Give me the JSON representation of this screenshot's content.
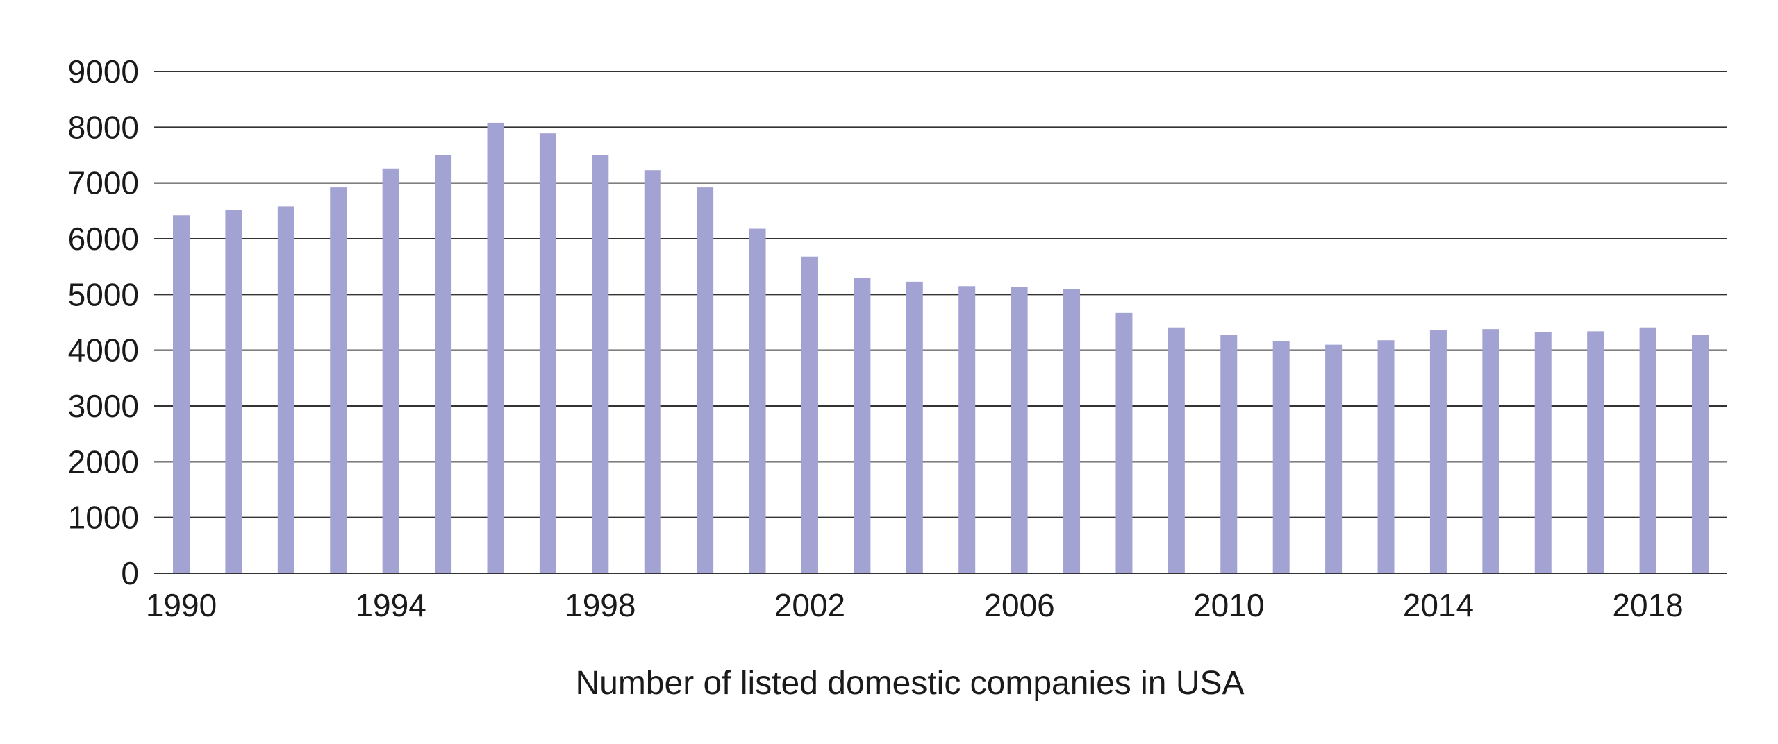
{
  "chart_data": {
    "type": "bar",
    "title": "",
    "xlabel": "Number of listed domestic companies in USA",
    "ylabel": "",
    "categories": [
      "1990",
      "1991",
      "1992",
      "1993",
      "1994",
      "1995",
      "1996",
      "1997",
      "1998",
      "1999",
      "2000",
      "2001",
      "2002",
      "2003",
      "2004",
      "2005",
      "2006",
      "2007",
      "2008",
      "2009",
      "2010",
      "2011",
      "2012",
      "2013",
      "2014",
      "2015",
      "2016",
      "2017",
      "2018",
      "2019"
    ],
    "x_tick_labels": [
      "1990",
      "1994",
      "1998",
      "2002",
      "2006",
      "2010",
      "2014",
      "2018"
    ],
    "y_ticks": [
      0,
      1000,
      2000,
      3000,
      4000,
      5000,
      6000,
      7000,
      8000,
      9000
    ],
    "values": [
      6420,
      6520,
      6580,
      6920,
      7260,
      7500,
      8080,
      7890,
      7500,
      7230,
      6920,
      6180,
      5680,
      5300,
      5230,
      5150,
      5130,
      5100,
      4670,
      4410,
      4280,
      4170,
      4100,
      4180,
      4360,
      4380,
      4330,
      4340,
      4410,
      4280
    ],
    "ylim": [
      0,
      9000
    ],
    "grid": true,
    "legend": "none",
    "bar_color": "#a3a3d3"
  }
}
